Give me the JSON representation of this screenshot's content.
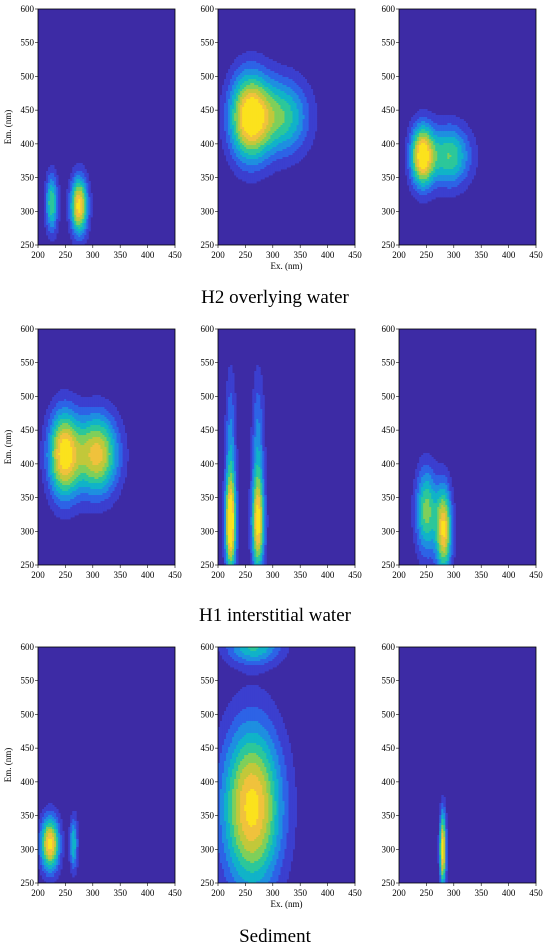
{
  "figure": {
    "group_titles": [
      "H2 overlying water",
      "H1 interstitial water",
      "Sediment"
    ],
    "colors": {
      "background": "#3d2ba5",
      "levels": [
        "#3d2ba5",
        "#3b3fcf",
        "#2d63e6",
        "#1e8fe0",
        "#10b3c8",
        "#2cc79a",
        "#7fcf5a",
        "#c2c83a",
        "#f0c23c",
        "#fbe21d"
      ],
      "contour_line": "#000000"
    }
  },
  "chart_data": [
    {
      "type": "heatmap",
      "xlabel": "",
      "ylabel": "Em. (nm)",
      "x_ticks": [
        "200",
        "250",
        "300",
        "350",
        "400",
        "450"
      ],
      "y_ticks": [
        "250",
        "300",
        "350",
        "400",
        "450",
        "500",
        "550",
        "600"
      ],
      "xlim": [
        200,
        450
      ],
      "ylim": [
        250,
        600
      ],
      "peaks": [
        {
          "ex": 225,
          "em": 312,
          "sx": 8,
          "sy": 30,
          "a": 0.6
        },
        {
          "ex": 275,
          "em": 308,
          "sx": 11,
          "sy": 30,
          "a": 0.95
        }
      ]
    },
    {
      "type": "heatmap",
      "xlabel": "Ex. (nm)",
      "ylabel": "",
      "x_ticks": [
        "200",
        "250",
        "300",
        "350",
        "400",
        "450"
      ],
      "y_ticks": [
        "250",
        "300",
        "350",
        "400",
        "450",
        "500",
        "550",
        "600"
      ],
      "xlim": [
        200,
        450
      ],
      "ylim": [
        250,
        600
      ],
      "peaks": [
        {
          "ex": 258,
          "em": 440,
          "sx": 26,
          "sy": 45,
          "a": 1.0
        },
        {
          "ex": 320,
          "em": 440,
          "sx": 33,
          "sy": 40,
          "a": 0.55
        }
      ]
    },
    {
      "type": "heatmap",
      "xlabel": "",
      "ylabel": "",
      "x_ticks": [
        "200",
        "250",
        "300",
        "350",
        "400",
        "450"
      ],
      "y_ticks": [
        "250",
        "300",
        "350",
        "400",
        "450",
        "500",
        "550",
        "600"
      ],
      "xlim": [
        200,
        450
      ],
      "ylim": [
        250,
        600
      ],
      "peaks": [
        {
          "ex": 242,
          "em": 382,
          "sx": 15,
          "sy": 32,
          "a": 0.95
        },
        {
          "ex": 292,
          "em": 382,
          "sx": 27,
          "sy": 32,
          "a": 0.6
        }
      ]
    },
    {
      "type": "heatmap",
      "xlabel": "",
      "ylabel": "Em. (nm)",
      "x_ticks": [
        "200",
        "250",
        "300",
        "350",
        "400",
        "450"
      ],
      "y_ticks": [
        "250",
        "300",
        "350",
        "400",
        "450",
        "500",
        "550",
        "600"
      ],
      "xlim": [
        200,
        450
      ],
      "ylim": [
        250,
        600
      ],
      "peaks": [
        {
          "ex": 247,
          "em": 414,
          "sx": 20,
          "sy": 45,
          "a": 0.95
        },
        {
          "ex": 308,
          "em": 414,
          "sx": 27,
          "sy": 42,
          "a": 0.85
        }
      ]
    },
    {
      "type": "heatmap",
      "xlabel": "",
      "ylabel": "",
      "x_ticks": [
        "200",
        "250",
        "300",
        "350",
        "400",
        "450"
      ],
      "y_ticks": [
        "250",
        "300",
        "350",
        "400",
        "450",
        "500",
        "550",
        "600"
      ],
      "xlim": [
        200,
        450
      ],
      "ylim": [
        250,
        600
      ],
      "peaks": [
        {
          "ex": 223,
          "em": 308,
          "sx": 7,
          "sy": 50,
          "a": 1.0
        },
        {
          "ex": 273,
          "em": 308,
          "sx": 8,
          "sy": 50,
          "a": 0.85
        },
        {
          "ex": 223,
          "em": 420,
          "sx": 7,
          "sy": 80,
          "a": 0.35
        },
        {
          "ex": 273,
          "em": 420,
          "sx": 8,
          "sy": 80,
          "a": 0.35
        }
      ]
    },
    {
      "type": "heatmap",
      "xlabel": "",
      "ylabel": "",
      "x_ticks": [
        "200",
        "250",
        "300",
        "350",
        "400",
        "450"
      ],
      "y_ticks": [
        "250",
        "300",
        "350",
        "400",
        "450",
        "500",
        "550",
        "600"
      ],
      "xlim": [
        200,
        450
      ],
      "ylim": [
        250,
        600
      ],
      "peaks": [
        {
          "ex": 282,
          "em": 302,
          "sx": 10,
          "sy": 45,
          "a": 0.9
        },
        {
          "ex": 250,
          "em": 330,
          "sx": 14,
          "sy": 45,
          "a": 0.65
        }
      ]
    },
    {
      "type": "heatmap",
      "xlabel": "",
      "ylabel": "Em. (nm)",
      "x_ticks": [
        "200",
        "250",
        "300",
        "350",
        "400",
        "450"
      ],
      "y_ticks": [
        "250",
        "300",
        "350",
        "400",
        "450",
        "500",
        "550",
        "600"
      ],
      "xlim": [
        200,
        450
      ],
      "ylim": [
        250,
        600
      ],
      "peaks": [
        {
          "ex": 222,
          "em": 308,
          "sx": 12,
          "sy": 28,
          "a": 0.95
        },
        {
          "ex": 265,
          "em": 308,
          "sx": 5,
          "sy": 28,
          "a": 0.5
        }
      ]
    },
    {
      "type": "heatmap",
      "xlabel": "Ex. (nm)",
      "ylabel": "",
      "x_ticks": [
        "200",
        "250",
        "300",
        "350",
        "400",
        "450"
      ],
      "y_ticks": [
        "250",
        "300",
        "350",
        "400",
        "450",
        "500",
        "550",
        "600"
      ],
      "xlim": [
        200,
        450
      ],
      "ylim": [
        250,
        600
      ],
      "peaks": [
        {
          "ex": 262,
          "em": 362,
          "sx": 38,
          "sy": 85,
          "a": 0.95
        },
        {
          "ex": 265,
          "em": 600,
          "sx": 35,
          "sy": 18,
          "a": 0.5
        }
      ]
    },
    {
      "type": "heatmap",
      "xlabel": "",
      "ylabel": "",
      "x_ticks": [
        "200",
        "250",
        "300",
        "350",
        "400",
        "450"
      ],
      "y_ticks": [
        "250",
        "300",
        "350",
        "400",
        "450",
        "500",
        "550",
        "600"
      ],
      "xlim": [
        200,
        450
      ],
      "ylim": [
        250,
        600
      ],
      "peaks": [
        {
          "ex": 280,
          "em": 300,
          "sx": 4,
          "sy": 38,
          "a": 1.0
        }
      ]
    }
  ]
}
